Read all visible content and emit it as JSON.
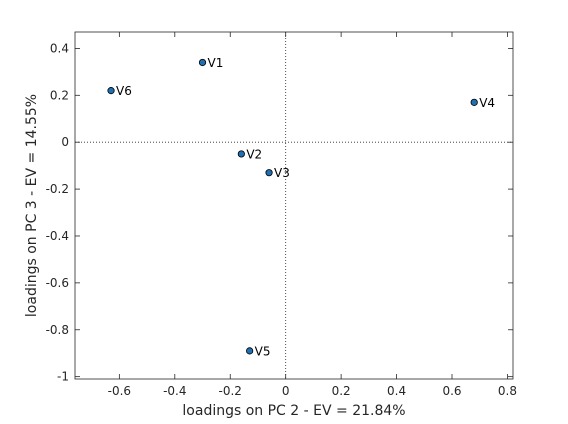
{
  "chart_data": {
    "type": "scatter",
    "xlabel": "loadings on PC 2 - EV = 21.84%",
    "ylabel": "loadings on PC 3 - EV = 14.55%",
    "xlim": [
      -0.76,
      0.82
    ],
    "ylim": [
      -1.01,
      0.47
    ],
    "xticks": [
      -0.6,
      -0.4,
      -0.2,
      0,
      0.2,
      0.4,
      0.6,
      0.8
    ],
    "yticks": [
      -1,
      -0.8,
      -0.6,
      -0.4,
      -0.2,
      0,
      0.2,
      0.4
    ],
    "grid": false,
    "reference_lines": {
      "x": 0,
      "y": 0,
      "style": "dotted"
    },
    "marker_color": "#1f6fb2",
    "points": [
      {
        "label": "V1",
        "x": -0.3,
        "y": 0.34
      },
      {
        "label": "V2",
        "x": -0.16,
        "y": -0.05
      },
      {
        "label": "V3",
        "x": -0.06,
        "y": -0.13
      },
      {
        "label": "V4",
        "x": 0.68,
        "y": 0.17
      },
      {
        "label": "V5",
        "x": -0.13,
        "y": -0.89
      },
      {
        "label": "V6",
        "x": -0.63,
        "y": 0.22
      }
    ]
  }
}
